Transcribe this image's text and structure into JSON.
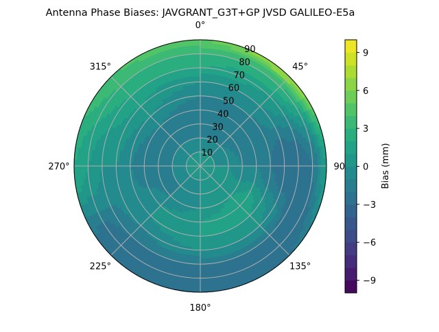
{
  "chart_data": {
    "type": "heatmap",
    "subtype": "polar-filled-contour",
    "title": "Antenna Phase Biases: JAVGRANT_G3T+GP JVSD GALILEO-E5a",
    "angular_ticks": [
      "0°",
      "45°",
      "90°",
      "135°",
      "180°",
      "225°",
      "270°",
      "315°"
    ],
    "radial_ticks": [
      "10",
      "20",
      "30",
      "40",
      "50",
      "60",
      "70",
      "80",
      "90"
    ],
    "radial_range": [
      0,
      90
    ],
    "angular_direction": "clockwise",
    "angular_zero": "top",
    "grid": true,
    "colorbar": {
      "label": "Bias (mm)",
      "range": [
        -10,
        10
      ],
      "level_step": 1,
      "ticks": [
        "9",
        "6",
        "3",
        "0",
        "−3",
        "−6",
        "−9"
      ],
      "tick_values": [
        9,
        6,
        3,
        0,
        -3,
        -6,
        -9
      ],
      "colormap": [
        "#440154",
        "#482475",
        "#414487",
        "#355f8d",
        "#2a788e",
        "#21918c",
        "#22a884",
        "#44bf70",
        "#7ad151",
        "#bddf26",
        "#fde725"
      ]
    },
    "field": {
      "azimuths_deg": [
        0,
        45,
        90,
        135,
        180,
        225,
        270,
        315
      ],
      "zenith_deg": [
        0,
        10,
        20,
        30,
        40,
        50,
        60,
        70,
        80,
        90
      ],
      "values_mm": [
        [
          0,
          0,
          -1,
          -2,
          -2,
          -1,
          0,
          2,
          3,
          5
        ],
        [
          0,
          0,
          -1,
          -2,
          -2,
          -1,
          0,
          1,
          3,
          7
        ],
        [
          0,
          0,
          0,
          -1,
          -1,
          -2,
          -3,
          -3,
          -2,
          1
        ],
        [
          0,
          1,
          1,
          1,
          2,
          1,
          0,
          -2,
          -3,
          -2
        ],
        [
          0,
          0,
          0,
          0,
          1,
          1,
          0,
          -2,
          -3,
          -3
        ],
        [
          0,
          0,
          -1,
          -1,
          0,
          0,
          -1,
          -2,
          -3,
          -3
        ],
        [
          0,
          0,
          -1,
          -2,
          -2,
          -1,
          0,
          0,
          1,
          2
        ],
        [
          0,
          0,
          -1,
          -1,
          -1,
          0,
          1,
          2,
          3,
          4
        ]
      ]
    }
  }
}
